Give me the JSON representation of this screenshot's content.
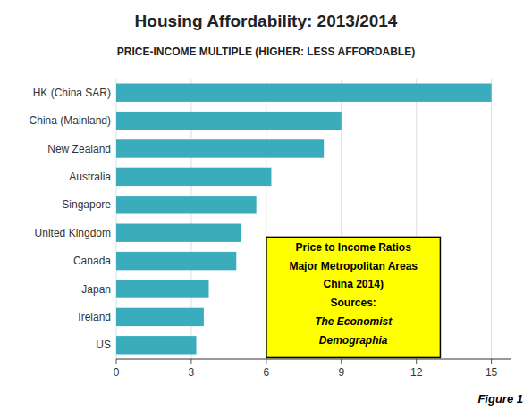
{
  "chart_data": {
    "type": "bar",
    "orientation": "horizontal",
    "title": "Housing Affordability: 2013/2014",
    "subtitle": "PRICE-INCOME MULTIPLE (HIGHER: LESS AFFORDABLE)",
    "categories": [
      "HK (China SAR)",
      "China (Mainland)",
      "New Zealand",
      "Australia",
      "Singapore",
      "United Kingdom",
      "Canada",
      "Japan",
      "Ireland",
      "US"
    ],
    "values": [
      15.0,
      9.0,
      8.3,
      6.2,
      5.6,
      5.0,
      4.8,
      3.7,
      3.5,
      3.2
    ],
    "color": "#3aacbc",
    "xlim": [
      0,
      15.8
    ],
    "xticks": [
      0,
      3,
      6,
      9,
      12,
      15
    ],
    "grid": true,
    "annotations": [
      "Price to Income Ratios",
      "Major Metropolitan Areas",
      "China  2014)",
      "Sources:",
      "The Economist",
      "Demographia"
    ],
    "caption": "Figure 1"
  }
}
